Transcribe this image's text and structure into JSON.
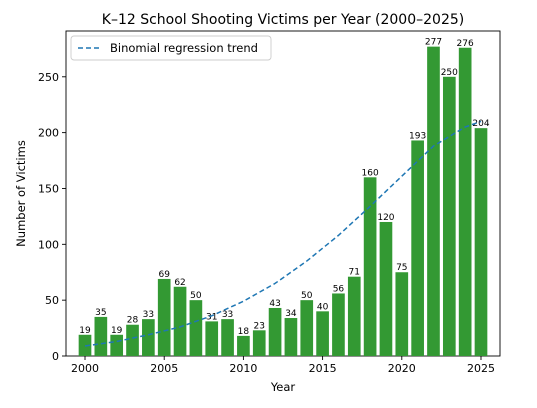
{
  "chart_data": {
    "type": "bar",
    "title": "K–12 School Shooting Victims per Year (2000–2025)",
    "xlabel": "Year",
    "ylabel": "Number of Victims",
    "xlim": [
      1998.8,
      2026.2
    ],
    "ylim": [
      0,
      291
    ],
    "xticks": [
      2000,
      2005,
      2010,
      2015,
      2020,
      2025
    ],
    "yticks": [
      0,
      50,
      100,
      150,
      200,
      250
    ],
    "x": [
      2000,
      2001,
      2002,
      2003,
      2004,
      2005,
      2006,
      2007,
      2008,
      2009,
      2010,
      2011,
      2012,
      2013,
      2014,
      2015,
      2016,
      2017,
      2018,
      2019,
      2020,
      2021,
      2022,
      2023,
      2024,
      2025
    ],
    "values": [
      19,
      35,
      19,
      28,
      33,
      69,
      62,
      50,
      31,
      33,
      18,
      23,
      43,
      34,
      50,
      40,
      56,
      71,
      160,
      120,
      75,
      193,
      277,
      250,
      276,
      204
    ],
    "bar_color": "#339933",
    "trend": {
      "name": "Binomial regression trend",
      "color": "#1f77b4",
      "style": "dashed",
      "x": [
        2000,
        2002,
        2004,
        2006,
        2008,
        2010,
        2012,
        2014,
        2016,
        2018,
        2020,
        2022,
        2024,
        2025
      ],
      "y": [
        9,
        13,
        19,
        26,
        36,
        49,
        65,
        85,
        108,
        134,
        161,
        188,
        205,
        210
      ]
    },
    "legend_position": "top-left",
    "grid": false
  }
}
